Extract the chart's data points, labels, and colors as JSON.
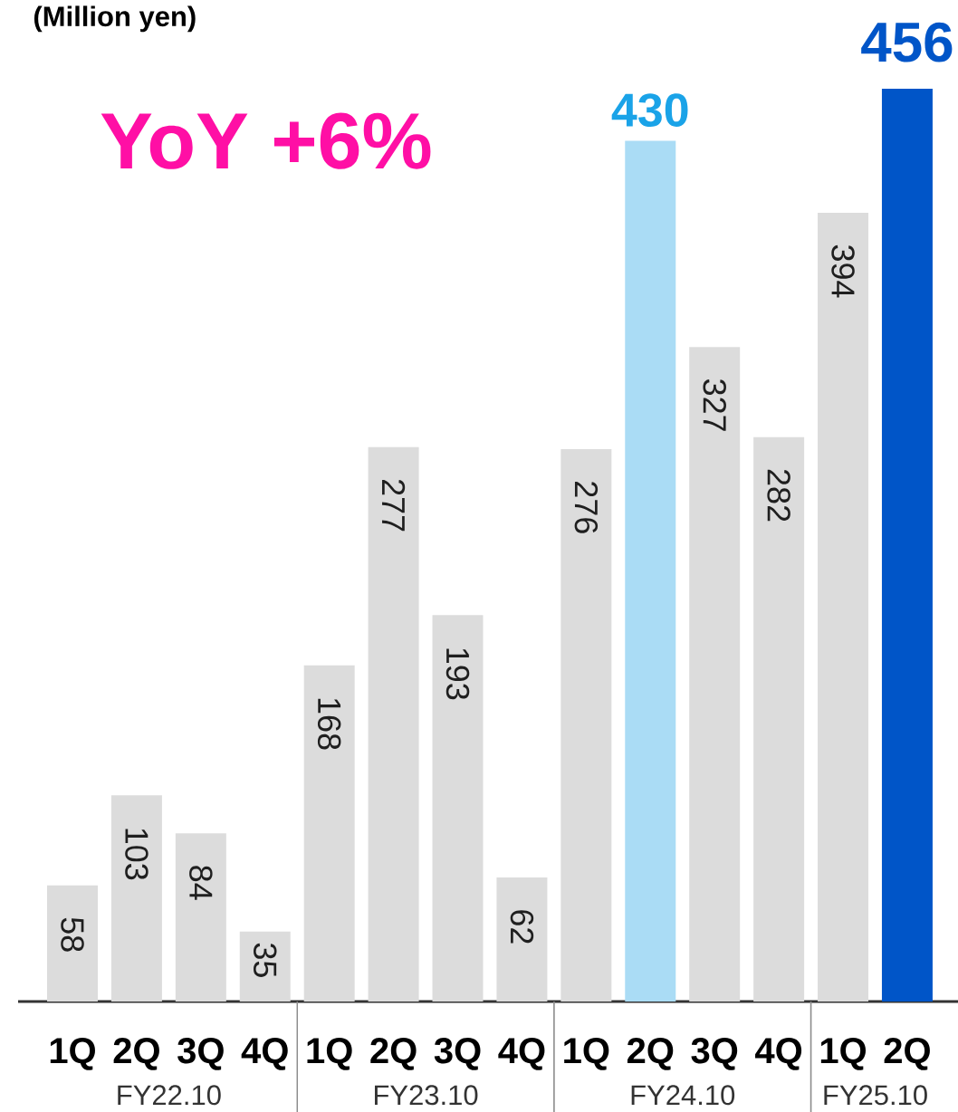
{
  "chart_data": {
    "type": "bar",
    "ylabel": "(Million yen)",
    "categories": [
      "1Q",
      "2Q",
      "3Q",
      "4Q",
      "1Q",
      "2Q",
      "3Q",
      "4Q",
      "1Q",
      "2Q",
      "3Q",
      "4Q",
      "1Q",
      "2Q"
    ],
    "values": [
      58,
      103,
      84,
      35,
      168,
      277,
      193,
      62,
      276,
      430,
      327,
      282,
      394,
      456
    ],
    "colors": [
      "#dcdcdc",
      "#dcdcdc",
      "#dcdcdc",
      "#dcdcdc",
      "#dcdcdc",
      "#dcdcdc",
      "#dcdcdc",
      "#dcdcdc",
      "#dcdcdc",
      "#aadcf5",
      "#dcdcdc",
      "#dcdcdc",
      "#dcdcdc",
      "#0055c8"
    ],
    "data_labels": true,
    "annotations": [
      "YoY +6%",
      "FY22.10",
      "FY23.10",
      "FY24.10",
      "FY25.10"
    ]
  }
}
